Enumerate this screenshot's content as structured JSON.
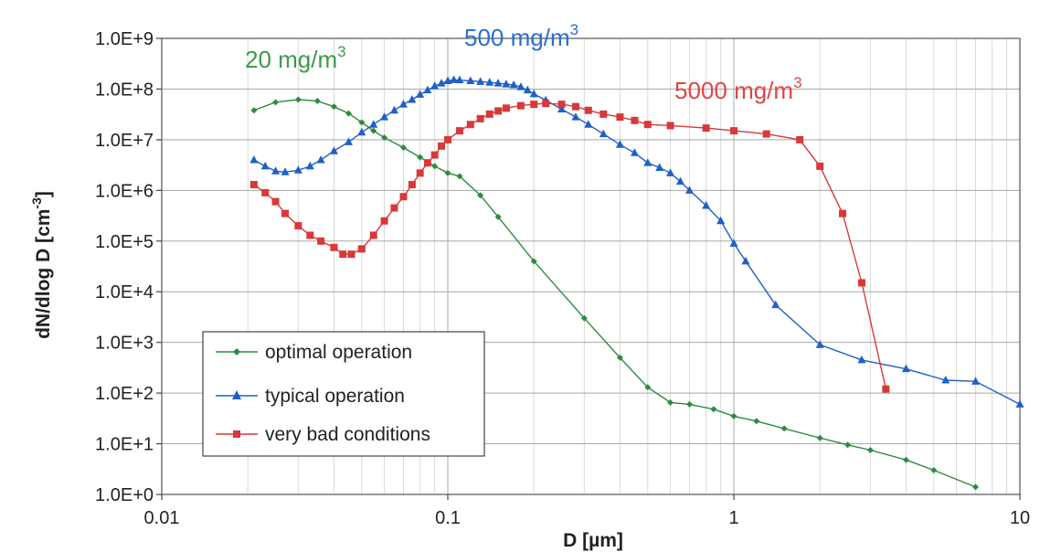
{
  "chart_data": {
    "type": "line",
    "xlabel": "D [µm]",
    "ylabel": "dN/dlog D [cm",
    "ylabel_sup": "-3",
    "ylabel_end": "]",
    "x_scale": "log",
    "y_scale": "log",
    "xlim": [
      0.01,
      10
    ],
    "ylim": [
      1,
      1000000000
    ],
    "x_ticks": [
      {
        "value": 0.01,
        "label": "0.01"
      },
      {
        "value": 0.1,
        "label": "0.1"
      },
      {
        "value": 1,
        "label": "1"
      },
      {
        "value": 10,
        "label": "10"
      }
    ],
    "y_ticks": [
      {
        "value": 1,
        "label": "1.0E+0"
      },
      {
        "value": 10,
        "label": "1.0E+1"
      },
      {
        "value": 100,
        "label": "1.0E+2"
      },
      {
        "value": 1000,
        "label": "1.0E+3"
      },
      {
        "value": 10000,
        "label": "1.0E+4"
      },
      {
        "value": 100000,
        "label": "1.0E+5"
      },
      {
        "value": 1000000,
        "label": "1.0E+6"
      },
      {
        "value": 10000000,
        "label": "1.0E+7"
      },
      {
        "value": 100000000,
        "label": "1.0E+8"
      },
      {
        "value": 1000000000,
        "label": "1.0E+9"
      }
    ],
    "grid": true,
    "legend_position": "bottom-left",
    "series": [
      {
        "name": "optimal operation",
        "color": "#2e8b3e",
        "marker": "diamond",
        "x": [
          0.021,
          0.025,
          0.03,
          0.035,
          0.04,
          0.045,
          0.05,
          0.055,
          0.06,
          0.07,
          0.08,
          0.09,
          0.1,
          0.11,
          0.13,
          0.15,
          0.2,
          0.3,
          0.4,
          0.5,
          0.6,
          0.7,
          0.85,
          1.0,
          1.2,
          1.5,
          2.0,
          2.5,
          3.0,
          4.0,
          5.0,
          7.0
        ],
        "y": [
          38000000,
          55000000,
          62000000,
          58000000,
          45000000,
          33000000,
          22000000,
          15000000,
          11000000,
          7000000,
          4500000,
          3000000,
          2200000,
          1900000,
          800000,
          300000,
          40000,
          3000,
          500,
          130,
          65,
          60,
          48,
          35,
          28,
          20,
          13,
          9.5,
          7.5,
          4.8,
          3,
          1.4
        ]
      },
      {
        "name": "typical operation",
        "color": "#1f5fc8",
        "marker": "triangle",
        "x": [
          0.021,
          0.023,
          0.025,
          0.027,
          0.03,
          0.033,
          0.036,
          0.04,
          0.045,
          0.05,
          0.055,
          0.06,
          0.065,
          0.07,
          0.075,
          0.08,
          0.085,
          0.09,
          0.095,
          0.1,
          0.105,
          0.11,
          0.12,
          0.13,
          0.14,
          0.15,
          0.16,
          0.17,
          0.18,
          0.19,
          0.2,
          0.22,
          0.25,
          0.28,
          0.31,
          0.35,
          0.4,
          0.45,
          0.5,
          0.55,
          0.6,
          0.65,
          0.7,
          0.8,
          0.9,
          1.0,
          1.1,
          1.4,
          2.0,
          2.8,
          4.0,
          5.5,
          7.0,
          10.0
        ],
        "y": [
          4000000,
          3000000,
          2400000,
          2300000,
          2500000,
          3000000,
          4000000,
          6000000,
          9000000,
          14000000,
          20000000,
          28000000,
          38000000,
          50000000,
          62000000,
          78000000,
          95000000,
          115000000,
          130000000,
          145000000,
          152000000,
          150000000,
          145000000,
          140000000,
          135000000,
          130000000,
          125000000,
          120000000,
          110000000,
          95000000,
          80000000,
          60000000,
          40000000,
          28000000,
          20000000,
          13000000,
          8000000,
          5500000,
          3500000,
          2800000,
          2200000,
          1500000,
          1000000,
          500000,
          250000,
          90000,
          40000,
          5500,
          900,
          450,
          300,
          180,
          170,
          60
        ]
      },
      {
        "name": "very bad conditions",
        "color": "#d83838",
        "marker": "square",
        "x": [
          0.021,
          0.023,
          0.025,
          0.027,
          0.03,
          0.033,
          0.036,
          0.04,
          0.043,
          0.046,
          0.05,
          0.055,
          0.06,
          0.065,
          0.07,
          0.075,
          0.08,
          0.085,
          0.09,
          0.095,
          0.1,
          0.11,
          0.12,
          0.13,
          0.14,
          0.15,
          0.16,
          0.18,
          0.2,
          0.22,
          0.25,
          0.28,
          0.31,
          0.35,
          0.4,
          0.45,
          0.5,
          0.6,
          0.8,
          1.0,
          1.3,
          1.7,
          2.0,
          2.4,
          2.8,
          3.4
        ],
        "y": [
          1300000,
          900000,
          600000,
          350000,
          200000,
          130000,
          100000,
          75000,
          55000,
          55000,
          70000,
          130000,
          250000,
          450000,
          750000,
          1300000,
          2200000,
          3500000,
          5000000,
          7500000,
          10000000,
          15000000,
          20000000,
          26000000,
          32000000,
          37000000,
          42000000,
          47000000,
          50000000,
          52000000,
          50000000,
          45000000,
          38000000,
          32000000,
          28000000,
          24000000,
          20000000,
          19000000,
          17000000,
          15000000,
          13000000,
          10000000,
          3000000,
          350000,
          15000,
          120
        ]
      }
    ],
    "annotations": [
      {
        "text": "20 mg/m",
        "sup": "3",
        "color": "#3d9a4a"
      },
      {
        "text": "500 mg/m",
        "sup": "3",
        "color": "#2a6fd1"
      },
      {
        "text": "5000 mg/m",
        "sup": "3",
        "color": "#e04545"
      }
    ]
  }
}
